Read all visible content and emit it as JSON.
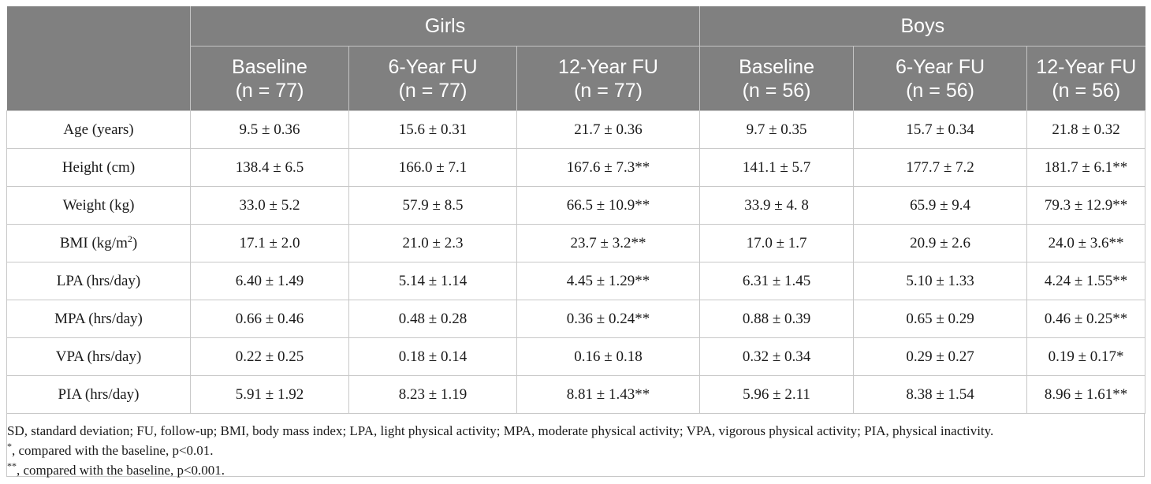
{
  "header": {
    "groups": [
      "Girls",
      "Boys"
    ],
    "columns": [
      {
        "line1": "Baseline",
        "line2": "(n = 77)"
      },
      {
        "line1": "6-Year FU",
        "line2": "(n = 77)"
      },
      {
        "line1": "12-Year FU",
        "line2": "(n = 77)"
      },
      {
        "line1": "Baseline",
        "line2": "(n = 56)"
      },
      {
        "line1": "6-Year FU",
        "line2": "(n = 56)"
      },
      {
        "line1": "12-Year FU",
        "line2": "(n = 56)"
      }
    ]
  },
  "rows": [
    {
      "label": "Age (years)",
      "cells": [
        "9.5 ± 0.36",
        "15.6 ± 0.31",
        "21.7 ± 0.36",
        "9.7 ± 0.35",
        "15.7 ± 0.34",
        "21.8 ± 0.32"
      ]
    },
    {
      "label": "Height (cm)",
      "cells": [
        "138.4 ± 6.5",
        "166.0 ± 7.1",
        "167.6 ± 7.3**",
        "141.1 ± 5.7",
        "177.7 ± 7.2",
        "181.7 ± 6.1**"
      ]
    },
    {
      "label": "Weight (kg)",
      "cells": [
        "33.0 ± 5.2",
        "57.9 ± 8.5",
        "66.5 ± 10.9**",
        "33.9 ± 4. 8",
        "65.9 ± 9.4",
        "79.3 ± 12.9**"
      ]
    },
    {
      "label_main": "BMI (kg/m",
      "label_sup": "2",
      "label_end": ")",
      "cells": [
        "17.1 ± 2.0",
        "21.0 ± 2.3",
        "23.7 ± 3.2**",
        "17.0 ± 1.7",
        "20.9 ± 2.6",
        "24.0 ± 3.6**"
      ]
    },
    {
      "label": "LPA (hrs/day)",
      "cells": [
        "6.40 ± 1.49",
        "5.14 ± 1.14",
        "4.45 ± 1.29**",
        "6.31 ± 1.45",
        "5.10 ± 1.33",
        "4.24 ± 1.55**"
      ]
    },
    {
      "label": "MPA (hrs/day)",
      "cells": [
        "0.66 ± 0.46",
        "0.48 ± 0.28",
        "0.36 ± 0.24**",
        "0.88 ± 0.39",
        "0.65 ± 0.29",
        "0.46 ± 0.25**"
      ]
    },
    {
      "label": "VPA (hrs/day)",
      "cells": [
        "0.22 ± 0.25",
        "0.18 ± 0.14",
        "0.16 ± 0.18",
        "0.32 ± 0.34",
        "0.29 ± 0.27",
        "0.19 ± 0.17*"
      ]
    },
    {
      "label": "PIA (hrs/day)",
      "cells": [
        "5.91 ± 1.92",
        "8.23 ± 1.19",
        "8.81 ± 1.43**",
        "5.96 ± 2.11",
        "8.38 ± 1.54",
        "8.96 ± 1.61**"
      ]
    }
  ],
  "footnotes": {
    "abbrev": "SD, standard deviation; FU, follow-up; BMI, body mass index; LPA, light physical activity; MPA, moderate physical activity; VPA, vigorous physical activity; PIA, physical inactivity.",
    "note1_mark": "*",
    "note1_text": ", compared with the baseline, p<0.01.",
    "note2_mark": "**",
    "note2_text": ", compared with the baseline, p<0.001."
  }
}
